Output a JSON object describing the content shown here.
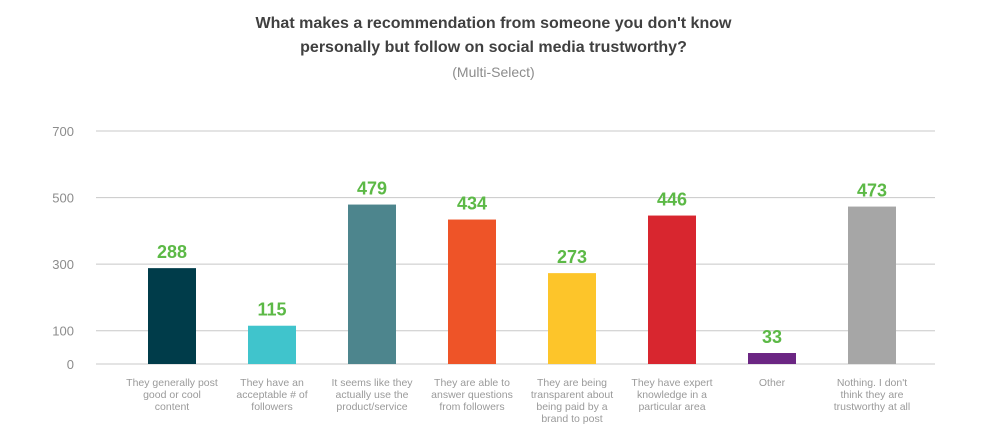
{
  "chart_data": {
    "type": "bar",
    "title_line1": "What makes a recommendation from someone you don't know",
    "title_line2": "personally but follow on social media trustworthy?",
    "subtitle": "(Multi-Select)",
    "xlabel": "",
    "ylabel": "",
    "ylim": [
      0,
      700
    ],
    "yticks": [
      0,
      100,
      300,
      500,
      700
    ],
    "grid": true,
    "categories": [
      "They generally post good or cool content",
      "They have an acceptable # of followers",
      "It seems like they actually use the product/service",
      "They are able to answer questions from followers",
      "They are being transparent about being paid by a brand to post",
      "They have expert knowledge in a particular area",
      "Other",
      "Nothing. I don't think they are trustworthy at all"
    ],
    "values": [
      288,
      115,
      479,
      434,
      273,
      446,
      33,
      473
    ],
    "colors": [
      "#003c4a",
      "#40c4cc",
      "#4d858d",
      "#ee5428",
      "#fdc52a",
      "#d8262f",
      "#6b2683",
      "#a6a6a6"
    ],
    "value_label_color": "#5cb946"
  }
}
